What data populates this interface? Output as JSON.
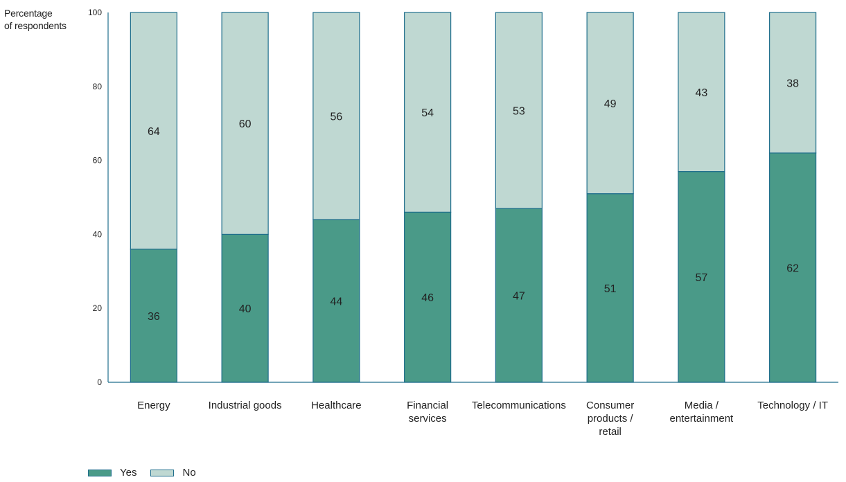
{
  "chart_data": {
    "type": "bar",
    "stacked": true,
    "title": "",
    "ylabel_lines": [
      "Percentage",
      "of respondents"
    ],
    "xlabel": "",
    "ylim": [
      0,
      100
    ],
    "yticks": [
      "0",
      "20",
      "40",
      "60",
      "80",
      "100"
    ],
    "categories": [
      [
        "Energy"
      ],
      [
        "Industrial goods"
      ],
      [
        "Healthcare"
      ],
      [
        "Financial",
        "services"
      ],
      [
        "Telecommunications"
      ],
      [
        "Consumer",
        "products /",
        "retail"
      ],
      [
        "Media /",
        "entertainment"
      ],
      [
        "Technology / IT"
      ]
    ],
    "series": [
      {
        "name": "Yes",
        "color": "#4a9a88",
        "values": [
          36,
          40,
          44,
          46,
          47,
          51,
          57,
          62
        ]
      },
      {
        "name": "No",
        "color": "#bfd8d2",
        "values": [
          64,
          60,
          56,
          54,
          53,
          49,
          43,
          38
        ]
      }
    ],
    "bar_border_color": "#1f6e8c",
    "axis_color": "#1f6e8c",
    "grid": false,
    "legend_position": "bottom-left"
  }
}
